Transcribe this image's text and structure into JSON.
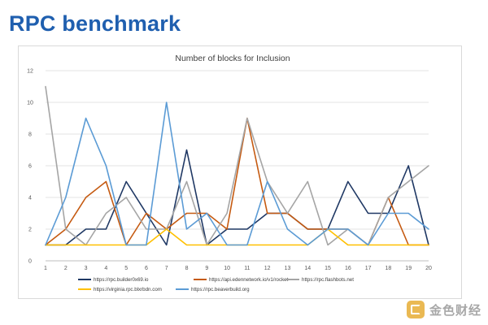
{
  "slide": {
    "title": "RPC benchmark"
  },
  "watermark": {
    "text": "金色财经",
    "logo_color": "#E3A21A"
  },
  "chart_data": {
    "type": "line",
    "title": "Number of blocks for Inclusion",
    "xlabel": "",
    "ylabel": "",
    "x": [
      1,
      2,
      3,
      4,
      5,
      6,
      7,
      8,
      9,
      10,
      11,
      12,
      13,
      14,
      15,
      16,
      17,
      18,
      19,
      20
    ],
    "ylim": [
      0,
      12
    ],
    "yticks": [
      0,
      2,
      4,
      6,
      8,
      10,
      12
    ],
    "grid": true,
    "legend_position": "bottom",
    "series": [
      {
        "name": "https://rpc.builder0x69.io",
        "color": "#1F3864",
        "values": [
          1,
          1,
          2,
          2,
          5,
          3,
          1,
          7,
          1,
          2,
          2,
          3,
          3,
          2,
          2,
          5,
          3,
          3,
          6,
          1
        ]
      },
      {
        "name": "https://api.edennetwork.io/v1/rocket",
        "color": "#C55A11",
        "values": [
          1,
          2,
          4,
          5,
          1,
          3,
          2,
          3,
          3,
          2,
          9,
          3,
          3,
          2,
          2,
          2,
          1,
          4,
          1,
          1
        ]
      },
      {
        "name": "https://rpc.flashbots.net",
        "color": "#A5A5A5",
        "values": [
          11,
          2,
          1,
          3,
          4,
          2,
          2,
          5,
          1,
          3,
          9,
          5,
          3,
          5,
          1,
          2,
          1,
          4,
          5,
          6
        ]
      },
      {
        "name": "https://virginia.rpc.blxrbdn.com",
        "color": "#FFC000",
        "values": [
          1,
          1,
          1,
          1,
          1,
          1,
          2,
          1,
          1,
          1,
          1,
          1,
          1,
          1,
          2,
          1,
          1,
          1,
          1,
          1
        ]
      },
      {
        "name": "https://rpc.beaverbuild.org",
        "color": "#5B9BD5",
        "values": [
          1,
          4,
          9,
          6,
          1,
          1,
          10,
          2,
          3,
          1,
          1,
          5,
          2,
          1,
          2,
          2,
          1,
          3,
          3,
          2
        ]
      }
    ]
  }
}
